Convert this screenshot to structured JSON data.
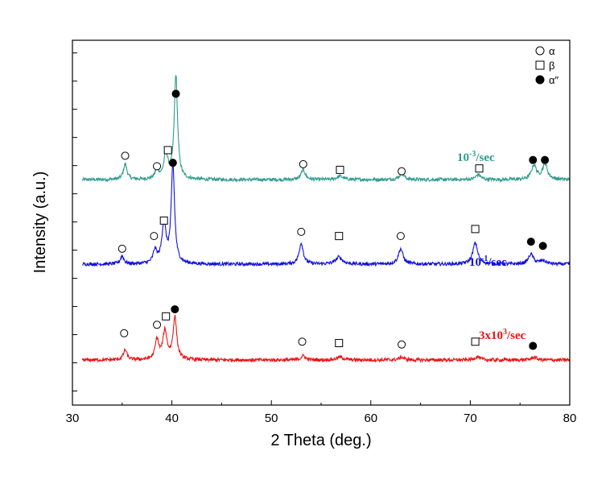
{
  "chart_data": {
    "type": "line",
    "title": "",
    "xlabel": "2 Theta (deg.)",
    "ylabel": "Intensity (a.u.)",
    "xlim": [
      30,
      80
    ],
    "x_ticks": [
      30,
      40,
      50,
      60,
      70,
      80
    ],
    "grid": false,
    "legend_position": "top-right",
    "legend": [
      {
        "symbol": "open-circle",
        "label": "α"
      },
      {
        "symbol": "open-square",
        "label": "β"
      },
      {
        "symbol": "filled-circle",
        "label": "α″"
      }
    ],
    "series": [
      {
        "name": "10-3/sec",
        "label_base": "10",
        "label_exp": "-3",
        "label_suffix": "/sec",
        "color": "#2e9b8f",
        "baseline": 1.0,
        "peaks": [
          {
            "x": 35.3,
            "h": 0.55,
            "w": 0.22
          },
          {
            "x": 38.5,
            "h": 0.35,
            "w": 0.22
          },
          {
            "x": 39.4,
            "h": 0.85,
            "w": 0.25
          },
          {
            "x": 40.4,
            "h": 3.7,
            "w": 0.2
          },
          {
            "x": 53.2,
            "h": 0.35,
            "w": 0.25
          },
          {
            "x": 56.9,
            "h": 0.12,
            "w": 0.4
          },
          {
            "x": 63.1,
            "h": 0.22,
            "w": 0.3
          },
          {
            "x": 70.8,
            "h": 0.18,
            "w": 0.3
          },
          {
            "x": 76.4,
            "h": 0.5,
            "w": 0.3
          },
          {
            "x": 77.5,
            "h": 0.55,
            "w": 0.3
          }
        ],
        "markers": [
          {
            "x": 35.3,
            "y": 1.85,
            "phase": "α"
          },
          {
            "x": 38.5,
            "y": 1.48,
            "phase": "α"
          },
          {
            "x": 39.6,
            "y": 2.05,
            "phase": "β"
          },
          {
            "x": 40.4,
            "y": 4.05,
            "phase": "α″"
          },
          {
            "x": 53.2,
            "y": 1.55,
            "phase": "α"
          },
          {
            "x": 56.9,
            "y": 1.35,
            "phase": "β"
          },
          {
            "x": 63.1,
            "y": 1.3,
            "phase": "α"
          },
          {
            "x": 70.9,
            "y": 1.4,
            "phase": "β"
          },
          {
            "x": 76.3,
            "y": 1.7,
            "phase": "α″"
          },
          {
            "x": 77.5,
            "y": 1.7,
            "phase": "α″"
          }
        ]
      },
      {
        "name": "10-1/sec",
        "label_base": "10",
        "label_exp": "-1",
        "label_suffix": "/sec",
        "color": "#1010e0",
        "baseline": -2.0,
        "peaks": [
          {
            "x": 35.0,
            "h": 0.28,
            "w": 0.22
          },
          {
            "x": 38.3,
            "h": 0.45,
            "w": 0.22
          },
          {
            "x": 39.2,
            "h": 1.4,
            "w": 0.25
          },
          {
            "x": 40.1,
            "h": 3.5,
            "w": 0.2
          },
          {
            "x": 53.0,
            "h": 0.75,
            "w": 0.25
          },
          {
            "x": 56.8,
            "h": 0.25,
            "w": 0.4
          },
          {
            "x": 63.0,
            "h": 0.55,
            "w": 0.28
          },
          {
            "x": 70.5,
            "h": 0.75,
            "w": 0.3
          },
          {
            "x": 76.1,
            "h": 0.35,
            "w": 0.3
          },
          {
            "x": 77.3,
            "h": 0.12,
            "w": 0.4
          }
        ],
        "markers": [
          {
            "x": 35.0,
            "y": -1.45,
            "phase": "α"
          },
          {
            "x": 38.2,
            "y": -1.0,
            "phase": "α"
          },
          {
            "x": 39.2,
            "y": -0.45,
            "phase": "β"
          },
          {
            "x": 40.1,
            "y": 1.6,
            "phase": "α″"
          },
          {
            "x": 53.0,
            "y": -0.85,
            "phase": "α"
          },
          {
            "x": 56.8,
            "y": -1.0,
            "phase": "β"
          },
          {
            "x": 63.0,
            "y": -1.0,
            "phase": "α"
          },
          {
            "x": 70.5,
            "y": -0.75,
            "phase": "β"
          },
          {
            "x": 76.1,
            "y": -1.2,
            "phase": "α″"
          },
          {
            "x": 77.3,
            "y": -1.35,
            "phase": "α″"
          }
        ]
      },
      {
        "name": "3x10³/sec",
        "label_base": "3x10",
        "label_exp": "3",
        "label_suffix": "/sec",
        "color": "#ee1111",
        "baseline": -5.4,
        "peaks": [
          {
            "x": 35.3,
            "h": 0.35,
            "w": 0.22
          },
          {
            "x": 38.5,
            "h": 0.7,
            "w": 0.22
          },
          {
            "x": 39.3,
            "h": 1.0,
            "w": 0.25
          },
          {
            "x": 40.3,
            "h": 1.5,
            "w": 0.22
          },
          {
            "x": 53.2,
            "h": 0.15,
            "w": 0.25
          },
          {
            "x": 56.9,
            "h": 0.1,
            "w": 0.4
          },
          {
            "x": 63.1,
            "h": 0.1,
            "w": 0.3
          },
          {
            "x": 70.7,
            "h": 0.12,
            "w": 0.3
          },
          {
            "x": 76.4,
            "h": 0.1,
            "w": 0.3
          }
        ],
        "markers": [
          {
            "x": 35.2,
            "y": -4.45,
            "phase": "α"
          },
          {
            "x": 38.5,
            "y": -4.15,
            "phase": "α"
          },
          {
            "x": 39.4,
            "y": -3.85,
            "phase": "β"
          },
          {
            "x": 40.3,
            "y": -3.6,
            "phase": "α″"
          },
          {
            "x": 53.1,
            "y": -4.75,
            "phase": "α"
          },
          {
            "x": 56.8,
            "y": -4.8,
            "phase": "β"
          },
          {
            "x": 63.1,
            "y": -4.85,
            "phase": "α"
          },
          {
            "x": 70.5,
            "y": -4.75,
            "phase": "β"
          },
          {
            "x": 76.3,
            "y": -4.9,
            "phase": "α″"
          }
        ]
      }
    ]
  }
}
